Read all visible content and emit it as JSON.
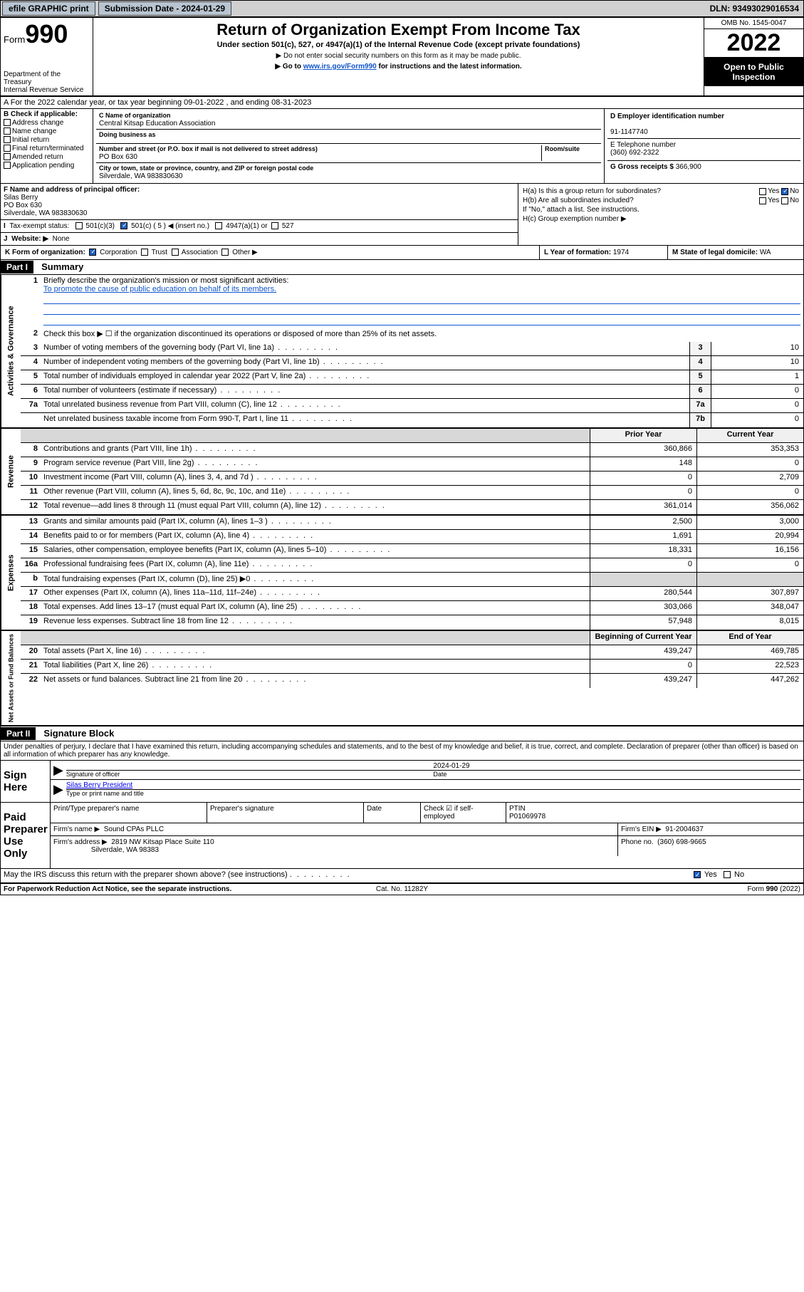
{
  "topbar": {
    "efile": "efile GRAPHIC print",
    "submission_label": "Submission Date - 2024-01-29",
    "dln": "DLN: 93493029016534"
  },
  "header": {
    "form_word": "Form",
    "form_num": "990",
    "dept": "Department of the Treasury",
    "irs": "Internal Revenue Service",
    "title": "Return of Organization Exempt From Income Tax",
    "subtitle": "Under section 501(c), 527, or 4947(a)(1) of the Internal Revenue Code (except private foundations)",
    "note1": "▶ Do not enter social security numbers on this form as it may be made public.",
    "note2_pre": "▶ Go to ",
    "note2_link": "www.irs.gov/Form990",
    "note2_post": " for instructions and the latest information.",
    "omb": "OMB No. 1545-0047",
    "year": "2022",
    "open": "Open to Public Inspection"
  },
  "line_a": "A For the 2022 calendar year, or tax year beginning 09-01-2022   , and ending 08-31-2023",
  "box_b": {
    "title": "B Check if applicable:",
    "opts": [
      "Address change",
      "Name change",
      "Initial return",
      "Final return/terminated",
      "Amended return",
      "Application pending"
    ]
  },
  "box_c": {
    "name_lbl": "C Name of organization",
    "name": "Central Kitsap Education Association",
    "dba_lbl": "Doing business as",
    "dba": "",
    "addr_lbl": "Number and street (or P.O. box if mail is not delivered to street address)",
    "room_lbl": "Room/suite",
    "addr": "PO Box 630",
    "city_lbl": "City or town, state or province, country, and ZIP or foreign postal code",
    "city": "Silverdale, WA  983830630"
  },
  "box_d": {
    "ein_lbl": "D Employer identification number",
    "ein": "91-1147740",
    "tel_lbl": "E Telephone number",
    "tel": "(360) 692-2322",
    "gross_lbl": "G Gross receipts $",
    "gross": "366,900"
  },
  "box_f": {
    "lbl": "F Name and address of principal officer:",
    "name": "Silas Berry",
    "addr1": "PO Box 630",
    "addr2": "Silverdale, WA  983830630"
  },
  "box_h": {
    "ha": "H(a)  Is this a group return for subordinates?",
    "hb": "H(b)  Are all subordinates included?",
    "hb_note": "If \"No,\" attach a list. See instructions.",
    "hc": "H(c)  Group exemption number ▶",
    "yes": "Yes",
    "no": "No"
  },
  "box_i": {
    "lbl": "Tax-exempt status:",
    "c3": "501(c)(3)",
    "c": "501(c) ( 5 ) ◀ (insert no.)",
    "a1": "4947(a)(1) or",
    "s527": "527"
  },
  "box_j": {
    "lbl": "Website: ▶",
    "val": "None"
  },
  "box_k": {
    "lbl": "K Form of organization:",
    "corp": "Corporation",
    "trust": "Trust",
    "assoc": "Association",
    "other": "Other ▶"
  },
  "box_l": {
    "lbl": "L Year of formation:",
    "val": "1974"
  },
  "box_m": {
    "lbl": "M State of legal domicile:",
    "val": "WA"
  },
  "part1": {
    "label": "Part I",
    "title": "Summary"
  },
  "summary": {
    "governance_label": "Activities & Governance",
    "revenue_label": "Revenue",
    "expenses_label": "Expenses",
    "net_label": "Net Assets or Fund Balances",
    "mission_lbl": "Briefly describe the organization's mission or most significant activities:",
    "mission": "To promote the cause of public education on behalf of its members.",
    "line2": "Check this box ▶ ☐  if the organization discontinued its operations or disposed of more than 25% of its net assets.",
    "prior_head": "Prior Year",
    "curr_head": "Current Year",
    "begin_head": "Beginning of Current Year",
    "end_head": "End of Year",
    "rows_gov": [
      {
        "n": "3",
        "t": "Number of voting members of the governing body (Part VI, line 1a)",
        "box": "3",
        "v": "10"
      },
      {
        "n": "4",
        "t": "Number of independent voting members of the governing body (Part VI, line 1b)",
        "box": "4",
        "v": "10"
      },
      {
        "n": "5",
        "t": "Total number of individuals employed in calendar year 2022 (Part V, line 2a)",
        "box": "5",
        "v": "1"
      },
      {
        "n": "6",
        "t": "Total number of volunteers (estimate if necessary)",
        "box": "6",
        "v": "0"
      },
      {
        "n": "7a",
        "t": "Total unrelated business revenue from Part VIII, column (C), line 12",
        "box": "7a",
        "v": "0"
      },
      {
        "n": "",
        "t": "Net unrelated business taxable income from Form 990-T, Part I, line 11",
        "box": "7b",
        "v": "0"
      }
    ],
    "rows_rev": [
      {
        "n": "8",
        "t": "Contributions and grants (Part VIII, line 1h)",
        "p": "360,866",
        "c": "353,353"
      },
      {
        "n": "9",
        "t": "Program service revenue (Part VIII, line 2g)",
        "p": "148",
        "c": "0"
      },
      {
        "n": "10",
        "t": "Investment income (Part VIII, column (A), lines 3, 4, and 7d )",
        "p": "0",
        "c": "2,709"
      },
      {
        "n": "11",
        "t": "Other revenue (Part VIII, column (A), lines 5, 6d, 8c, 9c, 10c, and 11e)",
        "p": "0",
        "c": "0"
      },
      {
        "n": "12",
        "t": "Total revenue—add lines 8 through 11 (must equal Part VIII, column (A), line 12)",
        "p": "361,014",
        "c": "356,062"
      }
    ],
    "rows_exp": [
      {
        "n": "13",
        "t": "Grants and similar amounts paid (Part IX, column (A), lines 1–3 )",
        "p": "2,500",
        "c": "3,000"
      },
      {
        "n": "14",
        "t": "Benefits paid to or for members (Part IX, column (A), line 4)",
        "p": "1,691",
        "c": "20,994"
      },
      {
        "n": "15",
        "t": "Salaries, other compensation, employee benefits (Part IX, column (A), lines 5–10)",
        "p": "18,331",
        "c": "16,156"
      },
      {
        "n": "16a",
        "t": "Professional fundraising fees (Part IX, column (A), line 11e)",
        "p": "0",
        "c": "0"
      },
      {
        "n": "b",
        "t": "Total fundraising expenses (Part IX, column (D), line 25) ▶0",
        "p": "",
        "c": ""
      },
      {
        "n": "17",
        "t": "Other expenses (Part IX, column (A), lines 11a–11d, 11f–24e)",
        "p": "280,544",
        "c": "307,897"
      },
      {
        "n": "18",
        "t": "Total expenses. Add lines 13–17 (must equal Part IX, column (A), line 25)",
        "p": "303,066",
        "c": "348,047"
      },
      {
        "n": "19",
        "t": "Revenue less expenses. Subtract line 18 from line 12",
        "p": "57,948",
        "c": "8,015"
      }
    ],
    "rows_net": [
      {
        "n": "20",
        "t": "Total assets (Part X, line 16)",
        "p": "439,247",
        "c": "469,785"
      },
      {
        "n": "21",
        "t": "Total liabilities (Part X, line 26)",
        "p": "0",
        "c": "22,523"
      },
      {
        "n": "22",
        "t": "Net assets or fund balances. Subtract line 21 from line 20",
        "p": "439,247",
        "c": "447,262"
      }
    ]
  },
  "part2": {
    "label": "Part II",
    "title": "Signature Block"
  },
  "penalty": "Under penalties of perjury, I declare that I have examined this return, including accompanying schedules and statements, and to the best of my knowledge and belief, it is true, correct, and complete. Declaration of preparer (other than officer) is based on all information of which preparer has any knowledge.",
  "sign": {
    "here": "Sign Here",
    "sig_lbl": "Signature of officer",
    "date_lbl": "Date",
    "date": "2024-01-29",
    "name": "Silas Berry President",
    "name_lbl": "Type or print name and title"
  },
  "paid": {
    "label": "Paid Preparer Use Only",
    "prep_name_lbl": "Print/Type preparer's name",
    "prep_sig_lbl": "Preparer's signature",
    "date_lbl": "Date",
    "check_lbl": "Check ☑ if self-employed",
    "ptin_lbl": "PTIN",
    "ptin": "P01069978",
    "firm_name_lbl": "Firm's name    ▶",
    "firm_name": "Sound CPAs PLLC",
    "firm_ein_lbl": "Firm's EIN ▶",
    "firm_ein": "91-2004637",
    "firm_addr_lbl": "Firm's address ▶",
    "firm_addr1": "2819 NW Kitsap Place Suite 110",
    "firm_addr2": "Silverdale, WA  98383",
    "phone_lbl": "Phone no.",
    "phone": "(360) 698-9665"
  },
  "discuss": "May the IRS discuss this return with the preparer shown above? (see instructions)",
  "footer": {
    "left": "For Paperwork Reduction Act Notice, see the separate instructions.",
    "mid": "Cat. No. 11282Y",
    "right": "Form 990 (2022)"
  }
}
